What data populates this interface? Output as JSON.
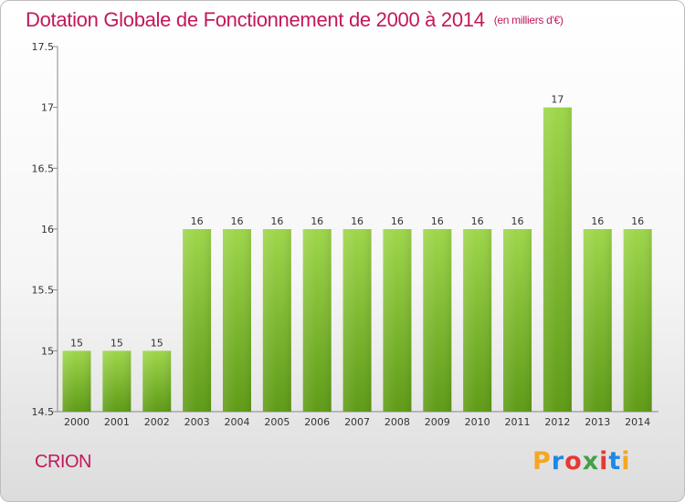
{
  "header": {
    "title": "Dotation Globale de Fonctionnement de 2000 à 2014",
    "unit": "(en milliers d'€)"
  },
  "footer": {
    "commune": "CRION",
    "logo_text": "Proxiti",
    "logo_colors": [
      "#f5a623",
      "#1e88e5",
      "#e53935",
      "#43a047",
      "#e53935",
      "#1e88e5",
      "#f5a623"
    ]
  },
  "colors": {
    "bar_top": "#9ed64a",
    "bar_bottom": "#5e9b16",
    "title": "#c2185b"
  },
  "chart_data": {
    "type": "bar",
    "categories": [
      "2000",
      "2001",
      "2002",
      "2003",
      "2004",
      "2005",
      "2006",
      "2007",
      "2008",
      "2009",
      "2010",
      "2011",
      "2012",
      "2013",
      "2014"
    ],
    "values": [
      15,
      15,
      15,
      16,
      16,
      16,
      16,
      16,
      16,
      16,
      16,
      16,
      17,
      16,
      16
    ],
    "data_labels": [
      "15",
      "15",
      "15",
      "16",
      "16",
      "16",
      "16",
      "16",
      "16",
      "16",
      "16",
      "16",
      "17",
      "16",
      "16"
    ],
    "ylim": [
      14.5,
      17.5
    ],
    "yticks": [
      14.5,
      15,
      15.5,
      16,
      16.5,
      17,
      17.5
    ],
    "ytick_labels": [
      "14.5",
      "15",
      "15.5",
      "16",
      "16.5",
      "17",
      "17.5"
    ],
    "grid": false
  }
}
